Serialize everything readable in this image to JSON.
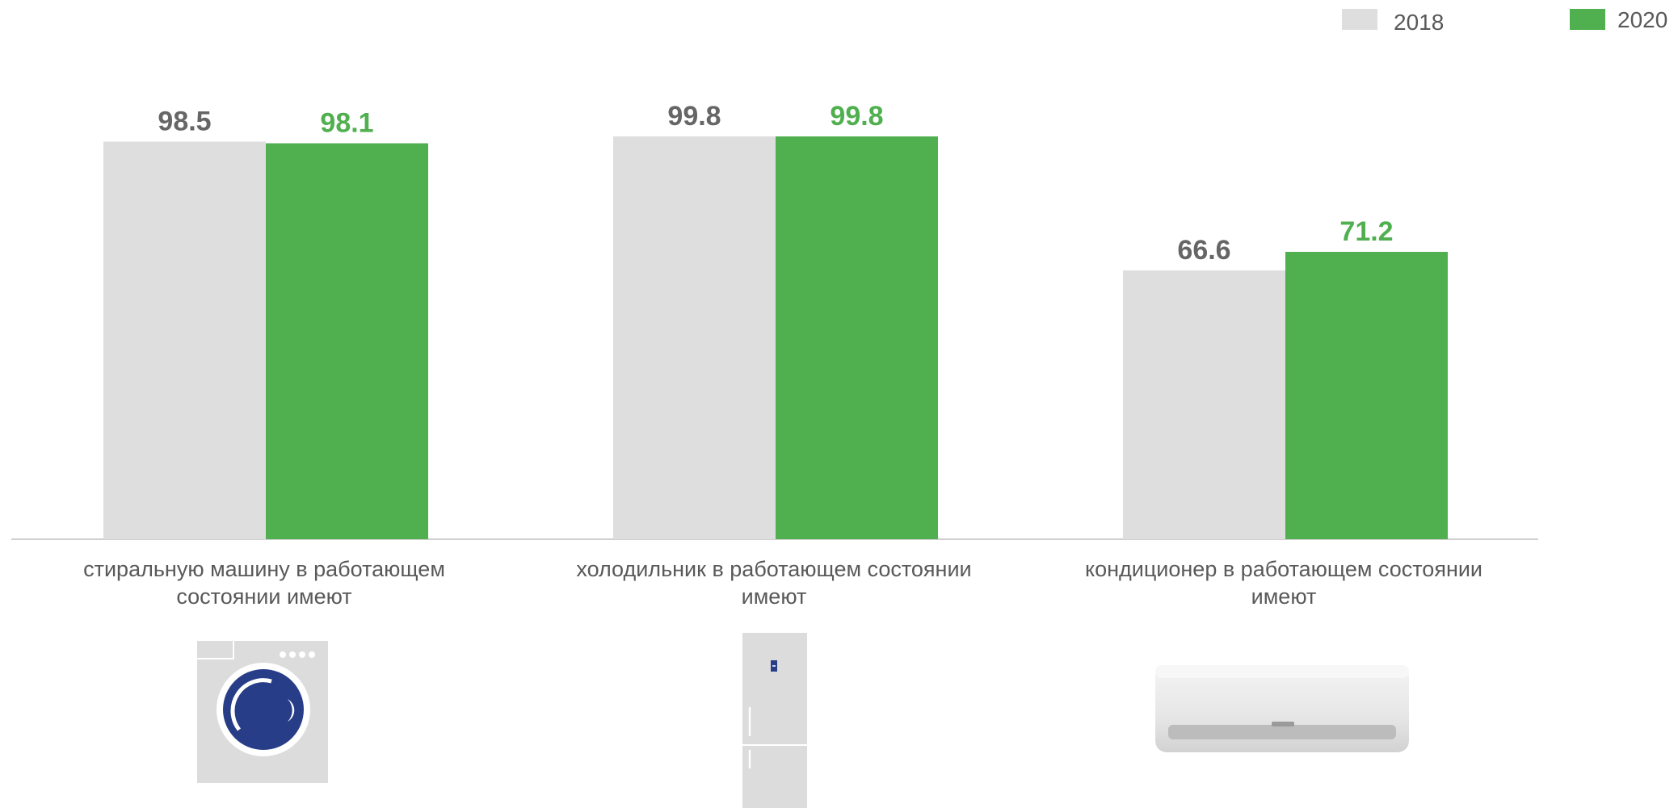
{
  "legend": [
    {
      "name": "2018",
      "color": "#dedede"
    },
    {
      "name": "2020",
      "color": "#50af4f"
    }
  ],
  "colors": {
    "series_2018": "#dedede",
    "series_2020": "#50af4f",
    "label_2018": "#666666",
    "label_2020": "#50af4f",
    "axis": "#d0d0d0",
    "category_text": "#595959"
  },
  "chart_data": {
    "type": "bar",
    "categories": [
      "стиральную машину в работающем состоянии имеют",
      "холодильник  в работающем состоянии имеют",
      "кондиционер в работающем состоянии имеют"
    ],
    "category_lines": [
      [
        "стиральную машину в работающем",
        "состоянии имеют"
      ],
      [
        "холодильник  в работающем состоянии",
        "имеют"
      ],
      [
        "кондиционер в работающем состоянии",
        "имеют"
      ]
    ],
    "series": [
      {
        "name": "2018",
        "values": [
          98.5,
          99.8,
          66.6
        ],
        "labels": [
          "98.5",
          "99.8",
          "66.6"
        ]
      },
      {
        "name": "2020",
        "values": [
          98.1,
          99.8,
          71.2
        ],
        "labels": [
          "98.1",
          "99.8",
          "71.2"
        ]
      }
    ],
    "ylim": [
      0,
      100
    ],
    "grid": false,
    "legend_position": "top-right",
    "data_labels": true
  },
  "icons": [
    "washing-machine-icon",
    "refrigerator-icon",
    "air-conditioner-icon"
  ]
}
